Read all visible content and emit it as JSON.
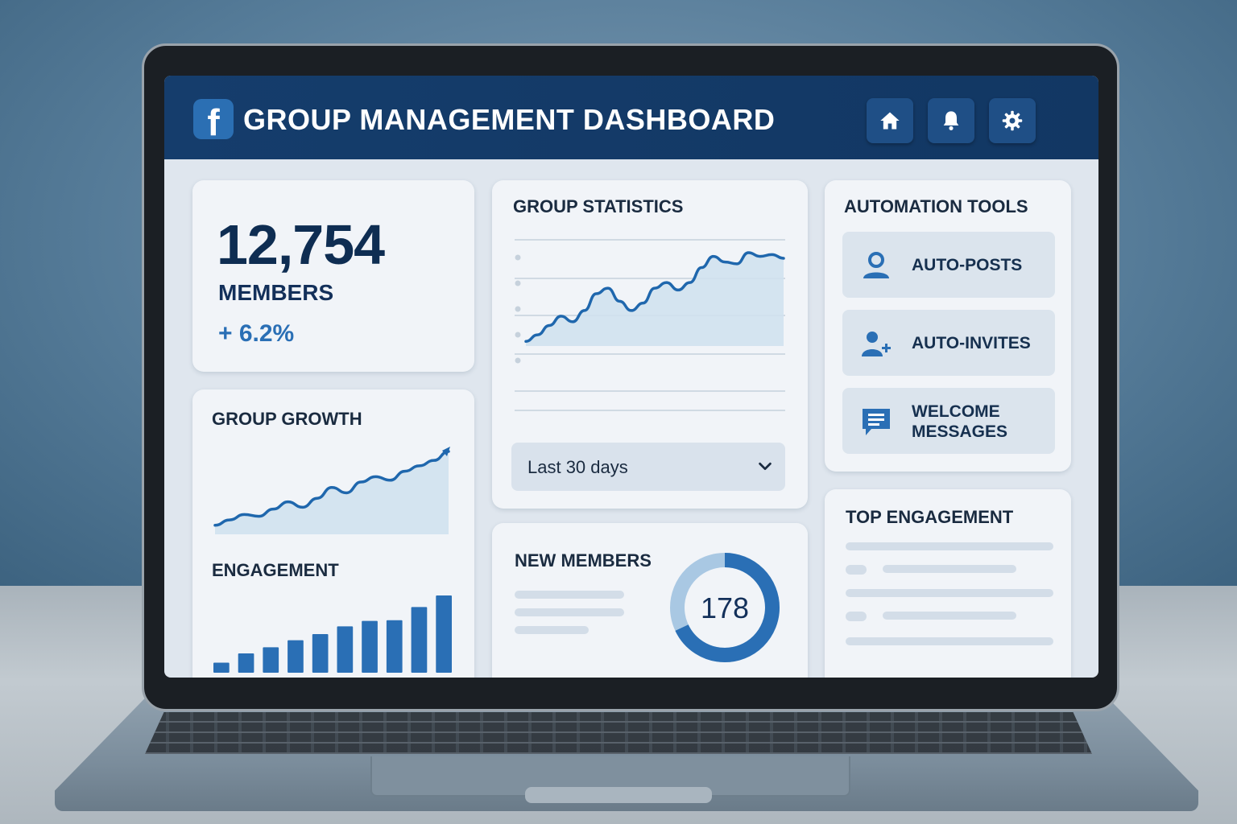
{
  "header": {
    "logo_letter": "f",
    "title": "GROUP MANAGEMENT DASHBOARD",
    "buttons": [
      {
        "icon": "home-icon"
      },
      {
        "icon": "bell-icon"
      },
      {
        "icon": "gear-icon"
      }
    ]
  },
  "members_card": {
    "count": "12,754",
    "label": "MEMBERS",
    "change": "+ 6.2%"
  },
  "group_growth": {
    "title": "GROUP GROWTH"
  },
  "engagement": {
    "title": "ENGAGEMENT"
  },
  "group_statistics": {
    "title": "GROUP STATISTICS",
    "range_select": {
      "value": "Last 30 days"
    }
  },
  "new_members": {
    "title": "NEW MEMBERS",
    "count": "178",
    "ring_fraction": 0.68
  },
  "automation_tools": {
    "title": "AUTOMATION TOOLS",
    "items": [
      {
        "icon": "user-icon",
        "label_lines": [
          "AUTO-POSTS"
        ]
      },
      {
        "icon": "add-user-icon",
        "label_lines": [
          "AUTO-INVITES"
        ]
      },
      {
        "icon": "chat-message-icon",
        "label_lines": [
          "WELCOME",
          "MESSAGES"
        ]
      }
    ]
  },
  "top_engagement": {
    "title": "TOP ENGAGEMENT"
  },
  "colors": {
    "header_bg": "#153d6c",
    "accent": "#2a6fb5",
    "card_bg": "#f1f4f8"
  },
  "chart_data": [
    {
      "type": "area",
      "name": "group-growth",
      "title": "GROUP GROWTH",
      "x": [
        0,
        1,
        2,
        3,
        4,
        5,
        6,
        7,
        8,
        9,
        10,
        11,
        12,
        13,
        14,
        15,
        16
      ],
      "values": [
        10,
        16,
        22,
        20,
        28,
        36,
        30,
        40,
        52,
        46,
        58,
        64,
        60,
        70,
        76,
        82,
        92
      ],
      "ylim": [
        0,
        100
      ]
    },
    {
      "type": "bar",
      "name": "engagement",
      "title": "ENGAGEMENT",
      "values": [
        13,
        25,
        33,
        42,
        50,
        60,
        67,
        68,
        85,
        100
      ],
      "ylim": [
        0,
        100
      ]
    },
    {
      "type": "area",
      "name": "group-statistics",
      "title": "GROUP STATISTICS",
      "x": [
        0,
        1,
        2,
        3,
        4,
        5,
        6,
        7,
        8,
        9,
        10,
        11,
        12,
        13,
        14,
        15,
        16,
        17,
        18,
        19,
        20,
        21,
        22
      ],
      "values": [
        5,
        12,
        22,
        32,
        26,
        38,
        56,
        62,
        48,
        38,
        46,
        62,
        68,
        60,
        68,
        84,
        96,
        90,
        88,
        100,
        96,
        98,
        94
      ],
      "ylim": [
        0,
        100
      ],
      "grid": true
    },
    {
      "type": "pie",
      "name": "new-members-ring",
      "values": [
        68,
        32
      ]
    }
  ]
}
